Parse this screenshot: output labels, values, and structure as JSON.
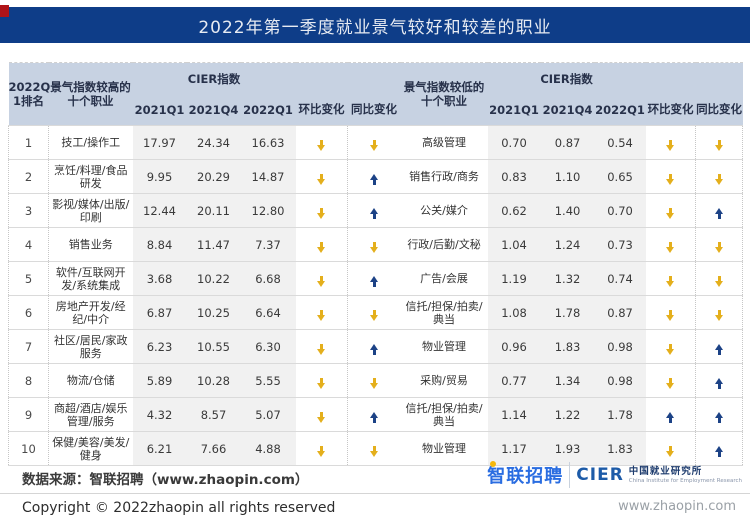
{
  "colors": {
    "banner_bg": "#0e3d88",
    "accent_red": "#b01418",
    "banner_text": "#e7ebf2",
    "header_bg": "#c7d2e2",
    "header_text": "#27314a",
    "value_col_bg": "#f1f1f1",
    "row_line": "#dadada",
    "down_arrow": "#e4af1c",
    "up_arrow": "#1c4286",
    "zhaopin_blue": "#2a6de1",
    "cier_blue": "#1d5ba8"
  },
  "banner": {
    "title": "2022年第一季度就业景气较好和较差的职业"
  },
  "table_headers": {
    "rank": "2022Q\n1排名",
    "high_group": "景气指数较高的\n十个职业",
    "low_group": "景气指数较低的\n十个职业",
    "cier": "CIER指数",
    "q1_2021": "2021Q1",
    "q4_2021": "2021Q4",
    "q1_2022": "2022Q1",
    "qoq": "环比变化",
    "yoy": "同比变化"
  },
  "chart_data": {
    "type": "table",
    "title": "2022年第一季度就业景气较好和较差的职业",
    "value_columns": [
      "2021Q1",
      "2021Q4",
      "2022Q1"
    ],
    "change_columns": [
      "环比变化",
      "同比变化"
    ],
    "high_group": {
      "label": "景气指数较高的十个职业",
      "rows": [
        {
          "rank": "1",
          "name": "技工/操作工",
          "values": [
            "17.97",
            "24.34",
            "16.63"
          ],
          "qoq": "down",
          "yoy": "down"
        },
        {
          "rank": "2",
          "name": "烹饪/料理/食品\n研发",
          "values": [
            "9.95",
            "20.29",
            "14.87"
          ],
          "qoq": "down",
          "yoy": "up"
        },
        {
          "rank": "3",
          "name": "影视/媒体/出版/\n印刷",
          "values": [
            "12.44",
            "20.11",
            "12.80"
          ],
          "qoq": "down",
          "yoy": "up"
        },
        {
          "rank": "4",
          "name": "销售业务",
          "values": [
            "8.84",
            "11.47",
            "7.37"
          ],
          "qoq": "down",
          "yoy": "down"
        },
        {
          "rank": "5",
          "name": "软件/互联网开\n发/系统集成",
          "values": [
            "3.68",
            "10.22",
            "6.68"
          ],
          "qoq": "down",
          "yoy": "up"
        },
        {
          "rank": "6",
          "name": "房地产开发/经\n纪/中介",
          "values": [
            "6.87",
            "10.25",
            "6.64"
          ],
          "qoq": "down",
          "yoy": "down"
        },
        {
          "rank": "7",
          "name": "社区/居民/家政\n服务",
          "values": [
            "6.23",
            "10.55",
            "6.30"
          ],
          "qoq": "down",
          "yoy": "up"
        },
        {
          "rank": "8",
          "name": "物流/仓储",
          "values": [
            "5.89",
            "10.28",
            "5.55"
          ],
          "qoq": "down",
          "yoy": "down"
        },
        {
          "rank": "9",
          "name": "商超/酒店/娱乐\n管理/服务",
          "values": [
            "4.32",
            "8.57",
            "5.07"
          ],
          "qoq": "down",
          "yoy": "up"
        },
        {
          "rank": "10",
          "name": "保健/美容/美发/\n健身",
          "values": [
            "6.21",
            "7.66",
            "4.88"
          ],
          "qoq": "down",
          "yoy": "down"
        }
      ]
    },
    "low_group": {
      "label": "景气指数较低的十个职业",
      "rows": [
        {
          "name": "高级管理",
          "values": [
            "0.70",
            "0.87",
            "0.54"
          ],
          "qoq": "down",
          "yoy": "down"
        },
        {
          "name": "销售行政/商务",
          "values": [
            "0.83",
            "1.10",
            "0.65"
          ],
          "qoq": "down",
          "yoy": "down"
        },
        {
          "name": "公关/媒介",
          "values": [
            "0.62",
            "1.40",
            "0.70"
          ],
          "qoq": "down",
          "yoy": "up"
        },
        {
          "name": "行政/后勤/文秘",
          "values": [
            "1.04",
            "1.24",
            "0.73"
          ],
          "qoq": "down",
          "yoy": "down"
        },
        {
          "name": "广告/会展",
          "values": [
            "1.19",
            "1.32",
            "0.74"
          ],
          "qoq": "down",
          "yoy": "down"
        },
        {
          "name": "信托/担保/拍卖/\n典当",
          "values": [
            "1.08",
            "1.78",
            "0.87"
          ],
          "qoq": "down",
          "yoy": "down"
        },
        {
          "name": "物业管理",
          "values": [
            "0.96",
            "1.83",
            "0.98"
          ],
          "qoq": "down",
          "yoy": "up"
        },
        {
          "name": "采购/贸易",
          "values": [
            "0.77",
            "1.34",
            "0.98"
          ],
          "qoq": "down",
          "yoy": "up"
        },
        {
          "name": "信托/担保/拍卖/\n典当",
          "values": [
            "1.14",
            "1.22",
            "1.78"
          ],
          "qoq": "up",
          "yoy": "up"
        },
        {
          "name": "物业管理",
          "values": [
            "1.17",
            "1.93",
            "1.83"
          ],
          "qoq": "down",
          "yoy": "up"
        }
      ]
    }
  },
  "footer": {
    "source": "数据来源：智联招聘（www.zhaopin.com）",
    "zhaopin_logo": "智联招聘",
    "cier_acronym": "CIER",
    "cier_cn": "中国就业研究所",
    "cier_en": "China Institute for Employment Research",
    "website": "www.zhaopin.com",
    "copyright": "Copyright © 2022zhaopin all rights reserved"
  }
}
